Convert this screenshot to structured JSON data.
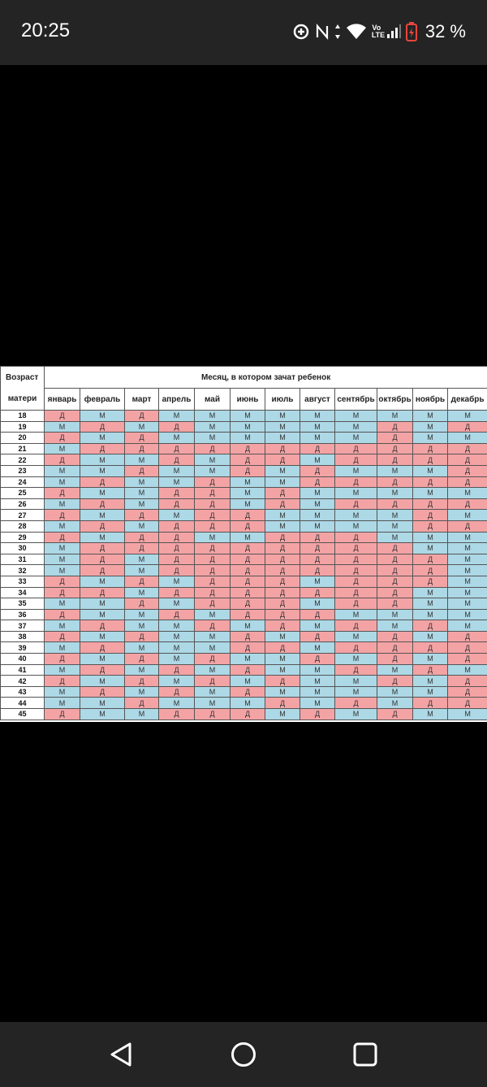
{
  "status_bar": {
    "time": "20:25",
    "battery": "32 %",
    "volte_label": "Vo LTE"
  },
  "table": {
    "corner_label_top": "Возраст",
    "corner_label_bottom": "матери",
    "title": "Месяц, в котором зачат ребенок",
    "months": [
      "январь",
      "февраль",
      "март",
      "апрель",
      "май",
      "июнь",
      "июль",
      "август",
      "сентябрь",
      "октябрь",
      "ноябрь",
      "декабрь"
    ],
    "colors": {
      "М": "#add8e6",
      "Д": "#f4a3a5"
    },
    "rows": [
      {
        "age": "18",
        "cells": [
          "Д",
          "М",
          "Д",
          "М",
          "М",
          "М",
          "М",
          "М",
          "М",
          "М",
          "М",
          "М"
        ]
      },
      {
        "age": "19",
        "cells": [
          "М",
          "Д",
          "М",
          "Д",
          "М",
          "М",
          "М",
          "М",
          "М",
          "Д",
          "М",
          "Д"
        ]
      },
      {
        "age": "20",
        "cells": [
          "Д",
          "М",
          "Д",
          "М",
          "М",
          "М",
          "М",
          "М",
          "М",
          "Д",
          "М",
          "М"
        ]
      },
      {
        "age": "21",
        "cells": [
          "М",
          "Д",
          "Д",
          "Д",
          "Д",
          "Д",
          "Д",
          "Д",
          "Д",
          "Д",
          "Д",
          "Д"
        ]
      },
      {
        "age": "22",
        "cells": [
          "Д",
          "М",
          "М",
          "Д",
          "М",
          "Д",
          "Д",
          "М",
          "Д",
          "Д",
          "Д",
          "Д"
        ]
      },
      {
        "age": "23",
        "cells": [
          "М",
          "М",
          "Д",
          "М",
          "М",
          "Д",
          "М",
          "Д",
          "М",
          "М",
          "М",
          "Д"
        ]
      },
      {
        "age": "24",
        "cells": [
          "М",
          "Д",
          "М",
          "М",
          "Д",
          "М",
          "М",
          "Д",
          "Д",
          "Д",
          "Д",
          "Д"
        ]
      },
      {
        "age": "25",
        "cells": [
          "Д",
          "М",
          "М",
          "Д",
          "Д",
          "М",
          "Д",
          "М",
          "М",
          "М",
          "М",
          "М"
        ]
      },
      {
        "age": "26",
        "cells": [
          "М",
          "Д",
          "М",
          "Д",
          "Д",
          "М",
          "Д",
          "М",
          "Д",
          "Д",
          "Д",
          "Д"
        ]
      },
      {
        "age": "27",
        "cells": [
          "Д",
          "М",
          "Д",
          "М",
          "Д",
          "Д",
          "М",
          "М",
          "М",
          "М",
          "Д",
          "М"
        ]
      },
      {
        "age": "28",
        "cells": [
          "М",
          "Д",
          "М",
          "Д",
          "Д",
          "Д",
          "М",
          "М",
          "М",
          "М",
          "Д",
          "Д"
        ]
      },
      {
        "age": "29",
        "cells": [
          "Д",
          "М",
          "Д",
          "Д",
          "М",
          "М",
          "Д",
          "Д",
          "Д",
          "М",
          "М",
          "М"
        ]
      },
      {
        "age": "30",
        "cells": [
          "М",
          "Д",
          "Д",
          "Д",
          "Д",
          "Д",
          "Д",
          "Д",
          "Д",
          "Д",
          "М",
          "М"
        ]
      },
      {
        "age": "31",
        "cells": [
          "М",
          "Д",
          "М",
          "Д",
          "Д",
          "Д",
          "Д",
          "Д",
          "Д",
          "Д",
          "Д",
          "М"
        ]
      },
      {
        "age": "32",
        "cells": [
          "М",
          "Д",
          "М",
          "Д",
          "Д",
          "Д",
          "Д",
          "Д",
          "Д",
          "Д",
          "Д",
          "М"
        ]
      },
      {
        "age": "33",
        "cells": [
          "Д",
          "М",
          "Д",
          "М",
          "Д",
          "Д",
          "Д",
          "М",
          "Д",
          "Д",
          "Д",
          "М"
        ]
      },
      {
        "age": "34",
        "cells": [
          "Д",
          "Д",
          "М",
          "Д",
          "Д",
          "Д",
          "Д",
          "Д",
          "Д",
          "Д",
          "М",
          "М"
        ]
      },
      {
        "age": "35",
        "cells": [
          "М",
          "М",
          "Д",
          "М",
          "Д",
          "Д",
          "Д",
          "М",
          "Д",
          "Д",
          "М",
          "М"
        ]
      },
      {
        "age": "36",
        "cells": [
          "Д",
          "М",
          "М",
          "Д",
          "М",
          "Д",
          "Д",
          "Д",
          "М",
          "М",
          "М",
          "М"
        ]
      },
      {
        "age": "37",
        "cells": [
          "М",
          "Д",
          "М",
          "М",
          "Д",
          "М",
          "Д",
          "М",
          "Д",
          "М",
          "Д",
          "М"
        ]
      },
      {
        "age": "38",
        "cells": [
          "Д",
          "М",
          "Д",
          "М",
          "М",
          "Д",
          "М",
          "Д",
          "М",
          "Д",
          "М",
          "Д"
        ]
      },
      {
        "age": "39",
        "cells": [
          "М",
          "Д",
          "М",
          "М",
          "М",
          "Д",
          "Д",
          "М",
          "Д",
          "Д",
          "Д",
          "Д"
        ]
      },
      {
        "age": "40",
        "cells": [
          "Д",
          "М",
          "Д",
          "М",
          "Д",
          "М",
          "М",
          "Д",
          "М",
          "Д",
          "М",
          "Д"
        ]
      },
      {
        "age": "41",
        "cells": [
          "М",
          "Д",
          "М",
          "Д",
          "М",
          "Д",
          "М",
          "М",
          "Д",
          "М",
          "Д",
          "М"
        ]
      },
      {
        "age": "42",
        "cells": [
          "Д",
          "М",
          "Д",
          "М",
          "Д",
          "М",
          "Д",
          "М",
          "М",
          "Д",
          "М",
          "Д"
        ]
      },
      {
        "age": "43",
        "cells": [
          "М",
          "Д",
          "М",
          "Д",
          "М",
          "Д",
          "М",
          "М",
          "М",
          "М",
          "М",
          "Д"
        ]
      },
      {
        "age": "44",
        "cells": [
          "М",
          "М",
          "Д",
          "М",
          "М",
          "М",
          "Д",
          "М",
          "Д",
          "М",
          "Д",
          "Д"
        ]
      },
      {
        "age": "45",
        "cells": [
          "Д",
          "М",
          "М",
          "Д",
          "Д",
          "Д",
          "М",
          "Д",
          "М",
          "Д",
          "М",
          "М"
        ]
      }
    ]
  }
}
